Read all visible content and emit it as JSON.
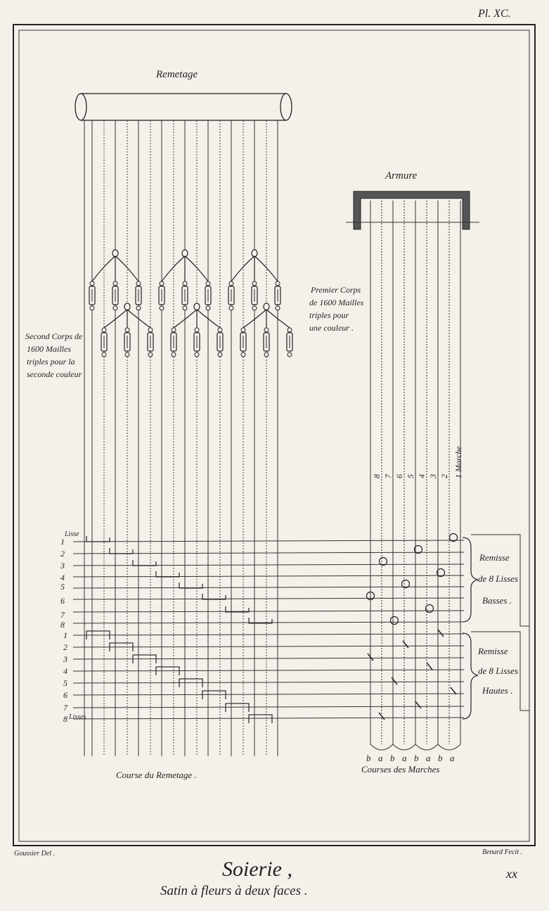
{
  "plate_number": "Pl. XC.",
  "title_remetage": "Remetage",
  "title_armure": "Armure",
  "note_premier": [
    "Premier Corps",
    "de 1600 Mailles",
    "triples pour",
    "une couleur ."
  ],
  "note_second": [
    "Second Corps de",
    "1600 Mailles",
    "triples pour la",
    "seconde couleur"
  ],
  "lisse_label": "Lisse",
  "lisses_label": "Lisses",
  "lisse_numbers_basses": [
    "1",
    "2",
    "3",
    "4",
    "5",
    "6",
    "7",
    "8"
  ],
  "lisse_numbers_hautes": [
    "1",
    "2",
    "3",
    "4",
    "5",
    "6",
    "7",
    "8"
  ],
  "marche_labels": [
    "8",
    "7",
    "6",
    "5",
    "4",
    "3",
    "2",
    "1 Marche"
  ],
  "remisse_basses": [
    "Remisse",
    "de 8 Lisses",
    "Basses ."
  ],
  "remisse_hautes": [
    "Remisse",
    "de 8 Lisses",
    "Hautes ."
  ],
  "course_remetage": "Course du Remetage .",
  "ab_letters": [
    "b",
    "a",
    "b",
    "a",
    "b",
    "a",
    "b",
    "a"
  ],
  "courses_marches": "Courses des Marches",
  "credit_left": "Goussier Del .",
  "credit_right": "Benard Fecit .",
  "main_title": "Soierie ,",
  "subtitle": "Satin à fleurs à deux faces .",
  "plate_code": "xx"
}
